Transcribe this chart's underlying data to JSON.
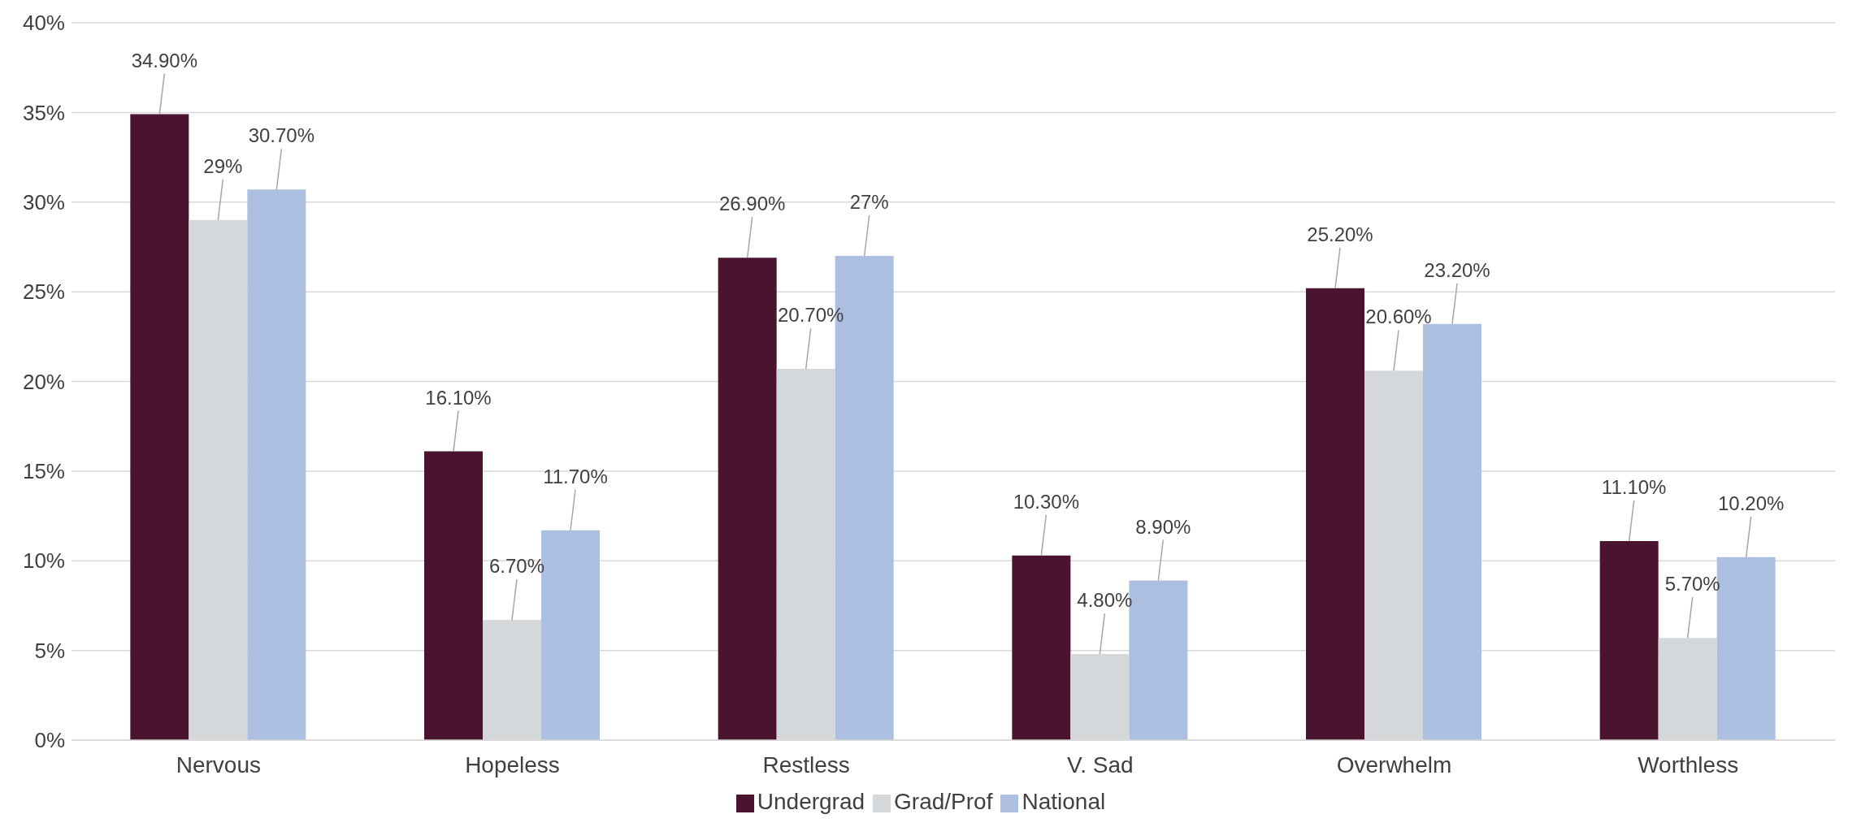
{
  "chart_data": {
    "type": "bar",
    "categories": [
      "Nervous",
      "Hopeless",
      "Restless",
      "V. Sad",
      "Overwhelm",
      "Worthless"
    ],
    "series": [
      {
        "name": "Undergrad",
        "color": "#4a1431",
        "values": [
          34.9,
          16.1,
          26.9,
          10.3,
          25.2,
          11.1
        ],
        "value_labels": [
          "34.90%",
          "16.10%",
          "26.90%",
          "10.30%",
          "25.20%",
          "11.10%"
        ]
      },
      {
        "name": "Grad/Prof",
        "color": "#d5d8db",
        "values": [
          29,
          6.7,
          20.7,
          4.8,
          20.6,
          5.7
        ],
        "value_labels": [
          "29%",
          "6.70%",
          "20.70%",
          "4.80%",
          "20.60%",
          "5.70%"
        ]
      },
      {
        "name": "National",
        "color": "#adbfe0",
        "values": [
          30.7,
          11.7,
          27,
          8.9,
          23.2,
          10.2
        ],
        "value_labels": [
          "30.70%",
          "11.70%",
          "27%",
          "8.90%",
          "23.20%",
          "10.20%"
        ]
      }
    ],
    "ylim": [
      0,
      40
    ],
    "yticks": [
      {
        "value": 0,
        "label": "0%"
      },
      {
        "value": 5,
        "label": "5%"
      },
      {
        "value": 10,
        "label": "10%"
      },
      {
        "value": 15,
        "label": "15%"
      },
      {
        "value": 20,
        "label": "20%"
      },
      {
        "value": 25,
        "label": "25%"
      },
      {
        "value": 30,
        "label": "30%"
      },
      {
        "value": 35,
        "label": "35%"
      },
      {
        "value": 40,
        "label": "40%"
      }
    ],
    "grid": "y",
    "legend": "bottom"
  }
}
